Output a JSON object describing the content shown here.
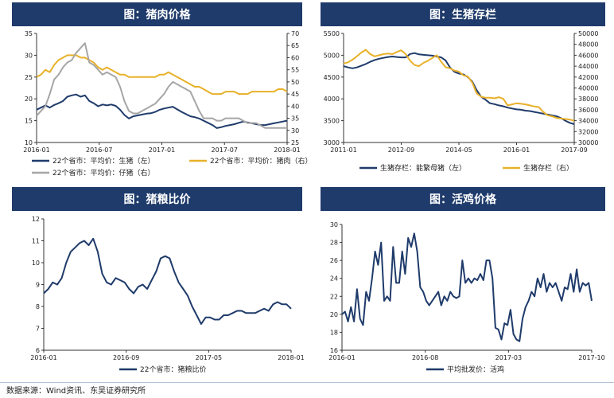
{
  "footer": {
    "source": "数据来源：Wind资讯、东吴证券研究所"
  },
  "chart_data": [
    {
      "id": "pork",
      "type": "line",
      "title": "图：猪肉价格",
      "x_ticks": [
        "2016-01",
        "2016-07",
        "2017-01",
        "2017-07",
        "2018-01"
      ],
      "y_left": {
        "min": 10,
        "max": 35,
        "ticks": [
          10,
          15,
          20,
          25,
          30,
          35
        ]
      },
      "y_right": {
        "min": 25,
        "max": 70,
        "ticks": [
          25,
          30,
          35,
          40,
          45,
          50,
          55,
          60,
          65,
          70
        ]
      },
      "series": [
        {
          "name": "22个省市：平均价：生猪（左）",
          "color": "#1f3b6b",
          "axis": "left",
          "values": [
            17.5,
            18.0,
            18.5,
            18.0,
            18.6,
            19.0,
            19.5,
            20.5,
            20.8,
            21.0,
            20.5,
            20.8,
            19.5,
            19.0,
            18.3,
            18.7,
            18.5,
            18.7,
            18.4,
            17.5,
            16.3,
            15.5,
            16.0,
            16.2,
            16.4,
            16.6,
            16.7,
            17.0,
            17.5,
            17.8,
            18.0,
            18.2,
            17.6,
            17.0,
            16.5,
            16.0,
            15.8,
            15.5,
            15.0,
            14.5,
            14.0,
            13.3,
            13.5,
            13.8,
            14.0,
            14.2,
            14.5,
            14.8,
            14.6,
            14.4,
            14.2,
            14.0,
            14.0,
            14.2,
            14.4,
            14.6,
            14.8,
            15.0
          ]
        },
        {
          "name": "22个省市：平均价：猪肉（右）",
          "color": "#e8b12a",
          "axis": "right",
          "values": [
            52,
            53,
            55,
            54,
            57,
            59,
            60,
            61,
            61,
            61,
            60,
            60,
            59,
            58,
            56,
            55,
            56,
            55,
            54,
            53,
            53,
            52,
            52,
            52,
            52,
            52,
            52,
            52,
            53,
            53,
            54,
            53,
            52,
            51,
            50,
            49,
            48,
            48,
            47,
            46,
            45,
            45,
            45,
            46,
            46,
            46,
            45,
            45,
            45,
            46,
            46,
            46,
            46,
            46,
            46,
            47,
            47,
            46
          ]
        },
        {
          "name": "22个省市：平均价：仔猪（右）",
          "color": "#a6a6a6",
          "axis": "right",
          "values": [
            36,
            38,
            40,
            45,
            51,
            53,
            56,
            58,
            59,
            62,
            64,
            66,
            58,
            57,
            55,
            53,
            54,
            53,
            52,
            48,
            42,
            38,
            37,
            37,
            38,
            39,
            40,
            41,
            43,
            45,
            48,
            50,
            49,
            48,
            47,
            46,
            42,
            38,
            35,
            35,
            35,
            34,
            34,
            35,
            35,
            35,
            35,
            34,
            33,
            33,
            33,
            32,
            31,
            31,
            31,
            31,
            31,
            31
          ]
        }
      ]
    },
    {
      "id": "inventory",
      "type": "line",
      "title": "图：生猪存栏",
      "x_ticks": [
        "2011-01",
        "2012-09",
        "2014-05",
        "2016-01",
        "2017-09"
      ],
      "y_left": {
        "min": 3000,
        "max": 5500,
        "ticks": [
          3000,
          3500,
          4000,
          4500,
          5000,
          5500
        ]
      },
      "y_right": {
        "min": 30000,
        "max": 50000,
        "ticks": [
          30000,
          32000,
          34000,
          36000,
          38000,
          40000,
          42000,
          44000,
          46000,
          48000,
          50000
        ]
      },
      "series": [
        {
          "name": "生猪存栏：能繁母猪（左）",
          "color": "#1f3b6b",
          "axis": "left",
          "values": [
            4750,
            4720,
            4700,
            4720,
            4760,
            4800,
            4850,
            4890,
            4920,
            4940,
            4960,
            4970,
            4960,
            4950,
            4950,
            5030,
            5050,
            5020,
            5010,
            5000,
            4990,
            4970,
            4950,
            4880,
            4720,
            4620,
            4580,
            4560,
            4500,
            4400,
            4200,
            4050,
            3980,
            3900,
            3880,
            3850,
            3830,
            3800,
            3780,
            3760,
            3750,
            3730,
            3720,
            3700,
            3680,
            3660,
            3640,
            3620,
            3600,
            3560,
            3500,
            3450,
            3420
          ]
        },
        {
          "name": "生猪存栏（右）",
          "color": "#e8b12a",
          "axis": "right",
          "values": [
            44500,
            44700,
            45200,
            45800,
            46500,
            47000,
            46200,
            45800,
            46000,
            46200,
            46300,
            46200,
            46600,
            46900,
            46200,
            45000,
            44200,
            44000,
            44600,
            45000,
            45500,
            46000,
            44800,
            43800,
            43600,
            43200,
            43000,
            42300,
            42100,
            41000,
            39000,
            38400,
            38200,
            38200,
            38100,
            38300,
            38000,
            36800,
            37000,
            37200,
            37100,
            37000,
            36800,
            36600,
            36500,
            35600,
            35000,
            34800,
            34500,
            34400,
            34300,
            34200,
            34000
          ]
        }
      ]
    },
    {
      "id": "hog-grain",
      "type": "line",
      "title": "图：猪粮比价",
      "x_ticks": [
        "2016-01",
        "2016-09",
        "2017-05",
        "2018-01"
      ],
      "y_left": {
        "min": 6,
        "max": 12,
        "ticks": [
          6,
          7,
          8,
          9,
          10,
          11,
          12
        ]
      },
      "series": [
        {
          "name": "22个省市：猪粮比价",
          "color": "#1f3b6b",
          "axis": "left",
          "values": [
            8.6,
            8.8,
            9.1,
            9.0,
            9.3,
            10.0,
            10.5,
            10.7,
            10.9,
            11.0,
            10.8,
            11.1,
            10.5,
            9.5,
            9.1,
            9.0,
            9.3,
            9.2,
            9.1,
            8.8,
            8.6,
            8.9,
            9.0,
            8.8,
            9.2,
            9.6,
            10.2,
            10.3,
            10.2,
            9.6,
            9.1,
            8.8,
            8.5,
            8.0,
            7.6,
            7.2,
            7.5,
            7.5,
            7.4,
            7.4,
            7.6,
            7.6,
            7.7,
            7.8,
            7.8,
            7.7,
            7.7,
            7.7,
            7.8,
            7.9,
            7.8,
            8.1,
            8.2,
            8.1,
            8.1,
            7.9
          ]
        }
      ]
    },
    {
      "id": "chicken",
      "type": "line",
      "title": "图：活鸡价格",
      "x_ticks": [
        "2016-01",
        "2016-08",
        "2017-03",
        "2017-10"
      ],
      "y_left": {
        "min": 16,
        "max": 30,
        "ticks": [
          16,
          18,
          20,
          22,
          24,
          26,
          28,
          30
        ]
      },
      "series": [
        {
          "name": "平均批发价：活鸡",
          "color": "#1f3b6b",
          "axis": "left",
          "values": [
            20.0,
            20.3,
            19.2,
            20.8,
            19.2,
            22.8,
            19.5,
            18.8,
            22.5,
            21.5,
            24.0,
            27.0,
            25.5,
            28.0,
            21.5,
            22.0,
            21.5,
            27.5,
            23.5,
            23.5,
            27.0,
            24.5,
            28.5,
            27.5,
            29.0,
            27.0,
            23.0,
            22.5,
            21.5,
            21.0,
            21.5,
            22.0,
            22.5,
            21.0,
            22.0,
            21.5,
            22.5,
            22.0,
            21.8,
            22.0,
            26.0,
            23.5,
            24.0,
            23.5,
            24.0,
            23.8,
            24.5,
            23.8,
            26.0,
            26.0,
            24.0,
            18.5,
            18.3,
            17.2,
            19.0,
            18.8,
            20.5,
            17.8,
            17.2,
            17.0,
            19.5,
            20.8,
            21.5,
            22.5,
            22.0,
            24.0,
            23.0,
            24.5,
            22.5,
            23.5,
            23.0,
            23.5,
            22.5,
            21.5,
            23.0,
            22.8,
            24.5,
            22.5,
            25.0,
            22.5,
            23.5,
            23.2,
            23.5,
            21.5
          ]
        }
      ]
    }
  ]
}
